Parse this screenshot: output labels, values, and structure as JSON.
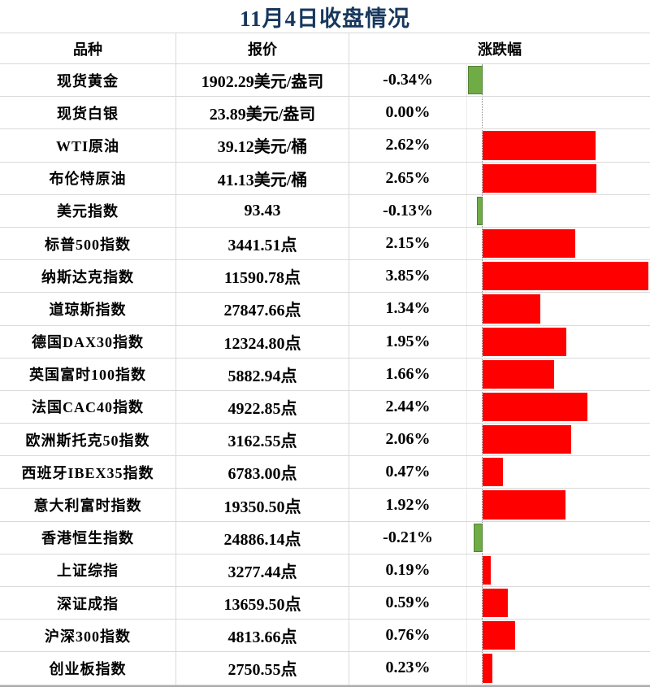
{
  "title": "11月4日收盘情况",
  "columns": {
    "name": "品种",
    "price": "报价",
    "change": "涨跌幅"
  },
  "colors": {
    "up": "#FF0000",
    "down": "#6FAC46",
    "down_border": "#538135",
    "title": "#17375D",
    "grid": "#D9D9D9"
  },
  "rows": [
    {
      "name": "现货黄金",
      "price": "1902.29美元/盎司",
      "change": "-0.34%",
      "pct": -0.34
    },
    {
      "name": "现货白银",
      "price": "23.89美元/盎司",
      "change": "0.00%",
      "pct": 0.0
    },
    {
      "name": "WTI原油",
      "price": "39.12美元/桶",
      "change": "2.62%",
      "pct": 2.62
    },
    {
      "name": "布伦特原油",
      "price": "41.13美元/桶",
      "change": "2.65%",
      "pct": 2.65
    },
    {
      "name": "美元指数",
      "price": "93.43",
      "change": "-0.13%",
      "pct": -0.13
    },
    {
      "name": "标普500指数",
      "price": "3441.51点",
      "change": "2.15%",
      "pct": 2.15
    },
    {
      "name": "纳斯达克指数",
      "price": "11590.78点",
      "change": "3.85%",
      "pct": 3.85
    },
    {
      "name": "道琼斯指数",
      "price": "27847.66点",
      "change": "1.34%",
      "pct": 1.34
    },
    {
      "name": "德国DAX30指数",
      "price": "12324.80点",
      "change": "1.95%",
      "pct": 1.95
    },
    {
      "name": "英国富时100指数",
      "price": "5882.94点",
      "change": "1.66%",
      "pct": 1.66
    },
    {
      "name": "法国CAC40指数",
      "price": "4922.85点",
      "change": "2.44%",
      "pct": 2.44
    },
    {
      "name": "欧洲斯托克50指数",
      "price": "3162.55点",
      "change": "2.06%",
      "pct": 2.06
    },
    {
      "name": "西班牙IBEX35指数",
      "price": "6783.00点",
      "change": "0.47%",
      "pct": 0.47
    },
    {
      "name": "意大利富时指数",
      "price": "19350.50点",
      "change": "1.92%",
      "pct": 1.92
    },
    {
      "name": "香港恒生指数",
      "price": "24886.14点",
      "change": "-0.21%",
      "pct": -0.21
    },
    {
      "name": "上证综指",
      "price": "3277.44点",
      "change": "0.19%",
      "pct": 0.19
    },
    {
      "name": "深证成指",
      "price": "13659.50点",
      "change": "0.59%",
      "pct": 0.59
    },
    {
      "name": "沪深300指数",
      "price": "4813.66点",
      "change": "0.76%",
      "pct": 0.76
    },
    {
      "name": "创业板指数",
      "price": "2750.55点",
      "change": "0.23%",
      "pct": 0.23
    }
  ],
  "chart_data": {
    "type": "bar",
    "orientation": "horizontal",
    "title": "11月4日收盘情况",
    "categories": [
      "现货黄金",
      "现货白银",
      "WTI原油",
      "布伦特原油",
      "美元指数",
      "标普500指数",
      "纳斯达克指数",
      "道琼斯指数",
      "德国DAX30指数",
      "英国富时100指数",
      "法国CAC40指数",
      "欧洲斯托克50指数",
      "西班牙IBEX35指数",
      "意大利富时指数",
      "香港恒生指数",
      "上证综指",
      "深证成指",
      "沪深300指数",
      "创业板指数"
    ],
    "values": [
      -0.34,
      0.0,
      2.62,
      2.65,
      -0.13,
      2.15,
      3.85,
      1.34,
      1.95,
      1.66,
      2.44,
      2.06,
      0.47,
      1.92,
      -0.21,
      0.19,
      0.59,
      0.76,
      0.23
    ],
    "value_unit": "%",
    "xlabel": "涨跌幅",
    "ylabel": "品种",
    "xlim": [
      -0.4,
      4.0
    ],
    "baseline": 0,
    "grid": false,
    "legend": "none",
    "color_rule": "positive=red, negative=green, zero=no bar"
  }
}
